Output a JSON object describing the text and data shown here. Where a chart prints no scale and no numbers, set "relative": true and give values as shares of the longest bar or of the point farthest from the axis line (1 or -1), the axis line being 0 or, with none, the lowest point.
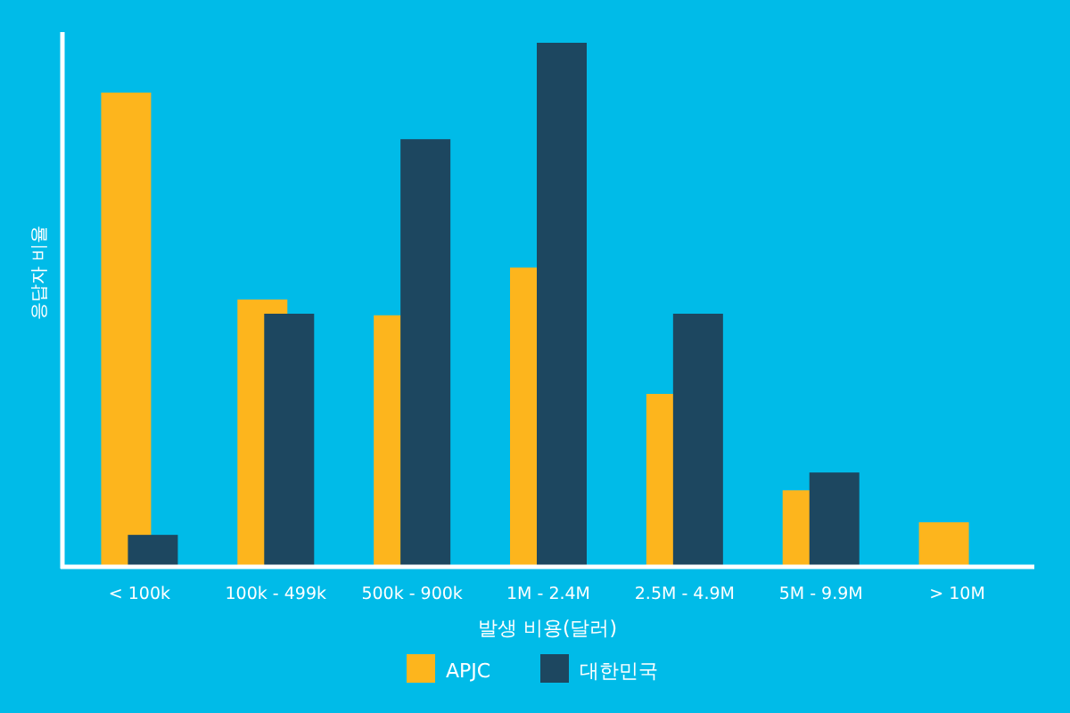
{
  "chart_data": {
    "type": "bar",
    "relative": true,
    "xlabel": "발생 비용(달러)",
    "ylabel": "응답자 비율",
    "categories": [
      "< 100k",
      "100k - 499k",
      "500k - 900k",
      "1M - 2.4M",
      "2.5M - 4.9M",
      "5M - 9.9M",
      "> 10M"
    ],
    "series": [
      {
        "name": "APJC",
        "color": "#fdb51d",
        "values": [
          0.905,
          0.51,
          0.48,
          0.571,
          0.33,
          0.146,
          0.085
        ]
      },
      {
        "name": "대한민국",
        "color": "#1d4760",
        "values": [
          0.061,
          0.483,
          0.816,
          1,
          0.483,
          0.18,
          null
        ]
      }
    ],
    "legend": "bottom"
  }
}
